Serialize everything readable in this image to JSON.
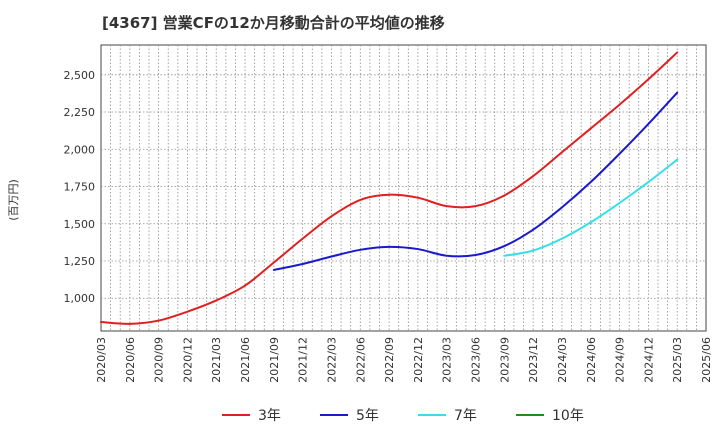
{
  "chart_data": {
    "type": "line",
    "title": "[4367]  営業CFの12か月移動合計の平均値の推移",
    "ylabel": "(百万円)",
    "xlabel": "",
    "grid": true,
    "legend_position": "bottom",
    "ylim": [
      780,
      2700
    ],
    "y_ticks": [
      1000,
      1250,
      1500,
      1750,
      2000,
      2250,
      2500
    ],
    "y_tick_labels": [
      "1,000",
      "1,250",
      "1,500",
      "1,750",
      "2,000",
      "2,250",
      "2,500"
    ],
    "x_ticks": [
      "2020/03",
      "2020/06",
      "2020/09",
      "2020/12",
      "2021/03",
      "2021/06",
      "2021/09",
      "2021/12",
      "2022/03",
      "2022/06",
      "2022/09",
      "2022/12",
      "2023/03",
      "2023/06",
      "2023/09",
      "2023/12",
      "2024/03",
      "2024/06",
      "2024/09",
      "2024/12",
      "2025/03",
      "2025/06"
    ],
    "series": [
      {
        "name": "3年",
        "color": "#e02020",
        "points": [
          [
            "2020/03",
            840
          ],
          [
            "2020/06",
            828
          ],
          [
            "2020/09",
            850
          ],
          [
            "2020/12",
            910
          ],
          [
            "2021/03",
            985
          ],
          [
            "2021/06",
            1085
          ],
          [
            "2021/09",
            1240
          ],
          [
            "2021/12",
            1400
          ],
          [
            "2022/03",
            1550
          ],
          [
            "2022/06",
            1660
          ],
          [
            "2022/09",
            1695
          ],
          [
            "2022/12",
            1675
          ],
          [
            "2023/03",
            1618
          ],
          [
            "2023/06",
            1618
          ],
          [
            "2023/09",
            1690
          ],
          [
            "2023/12",
            1820
          ],
          [
            "2024/03",
            1980
          ],
          [
            "2024/06",
            2140
          ],
          [
            "2024/09",
            2300
          ],
          [
            "2024/12",
            2470
          ],
          [
            "2025/03",
            2650
          ]
        ]
      },
      {
        "name": "5年",
        "color": "#1a1acc",
        "points": [
          [
            "2021/09",
            1190
          ],
          [
            "2021/12",
            1230
          ],
          [
            "2022/03",
            1280
          ],
          [
            "2022/06",
            1325
          ],
          [
            "2022/09",
            1345
          ],
          [
            "2022/12",
            1330
          ],
          [
            "2023/03",
            1285
          ],
          [
            "2023/06",
            1290
          ],
          [
            "2023/09",
            1350
          ],
          [
            "2023/12",
            1460
          ],
          [
            "2024/03",
            1610
          ],
          [
            "2024/06",
            1780
          ],
          [
            "2024/09",
            1970
          ],
          [
            "2024/12",
            2170
          ],
          [
            "2025/03",
            2380
          ]
        ]
      },
      {
        "name": "7年",
        "color": "#33e0e8",
        "points": [
          [
            "2023/09",
            1285
          ],
          [
            "2023/12",
            1320
          ],
          [
            "2024/03",
            1400
          ],
          [
            "2024/06",
            1510
          ],
          [
            "2024/09",
            1640
          ],
          [
            "2024/12",
            1780
          ],
          [
            "2025/03",
            1930
          ]
        ]
      },
      {
        "name": "10年",
        "color": "#228b22",
        "points": []
      }
    ]
  }
}
